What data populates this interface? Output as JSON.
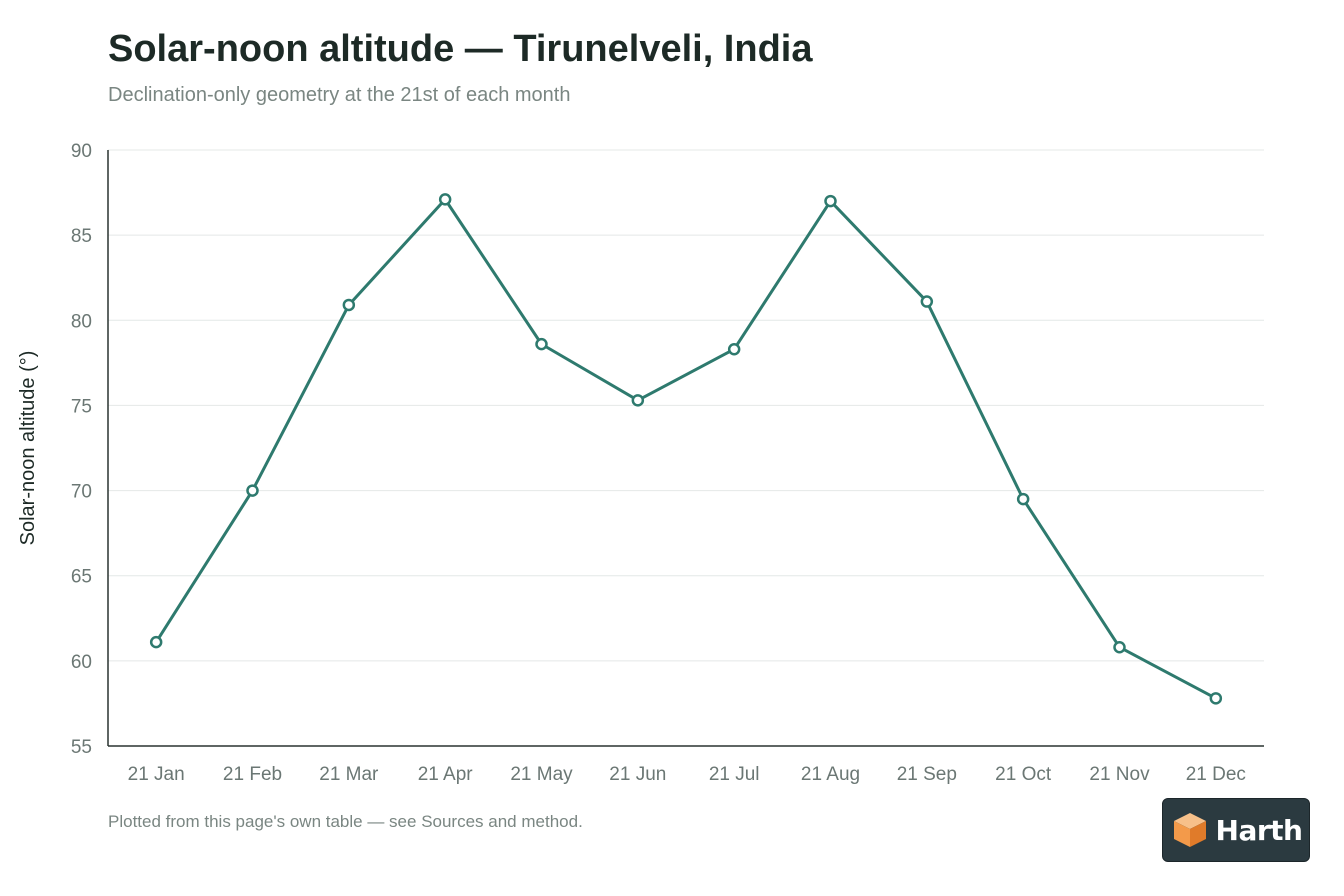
{
  "page": {
    "title": "Solar-noon altitude — Tirunelveli, India",
    "subtitle": "Declination-only geometry at the 21st of each month",
    "footnote": "Plotted from this page's own table — see Sources and method.",
    "brand": "Harth",
    "brand_icon": "cube-logo-icon"
  },
  "chart_data": {
    "type": "line",
    "title": "Solar-noon altitude — Tirunelveli, India",
    "subtitle": "Declination-only geometry at the 21st of each month",
    "xlabel": "",
    "ylabel": "Solar-noon altitude (°)",
    "categories": [
      "21 Jan",
      "21 Feb",
      "21 Mar",
      "21 Apr",
      "21 May",
      "21 Jun",
      "21 Jul",
      "21 Aug",
      "21 Sep",
      "21 Oct",
      "21 Nov",
      "21 Dec"
    ],
    "series": [
      {
        "values": [
          61.1,
          70.0,
          80.9,
          87.1,
          78.6,
          75.3,
          78.3,
          87.0,
          81.1,
          69.5,
          60.8,
          57.8
        ],
        "color": "#2e7a6e"
      }
    ],
    "ylim": [
      55,
      90
    ],
    "yticks": [
      55,
      60,
      65,
      70,
      75,
      80,
      85,
      90
    ],
    "grid": true,
    "legend": "none"
  }
}
